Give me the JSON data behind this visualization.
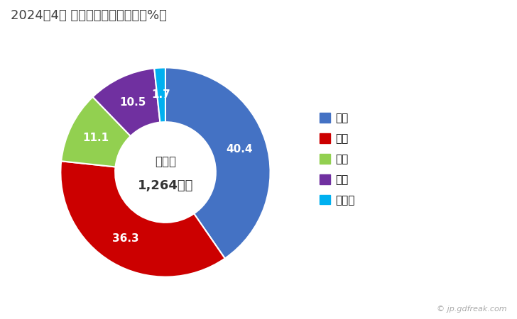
{
  "title": "2024年4月 輸出相手国のシェア（%）",
  "labels": [
    "韓国",
    "タイ",
    "台湾",
    "香港",
    "その他"
  ],
  "values": [
    40.4,
    36.3,
    11.1,
    10.5,
    1.7
  ],
  "colors": [
    "#4472C4",
    "#CC0000",
    "#92D050",
    "#7030A0",
    "#00B0F0"
  ],
  "center_text_line1": "総　額",
  "center_text_line2": "1,264万円",
  "watermark": "© jp.gdfreak.com",
  "background_color": "#FFFFFF"
}
